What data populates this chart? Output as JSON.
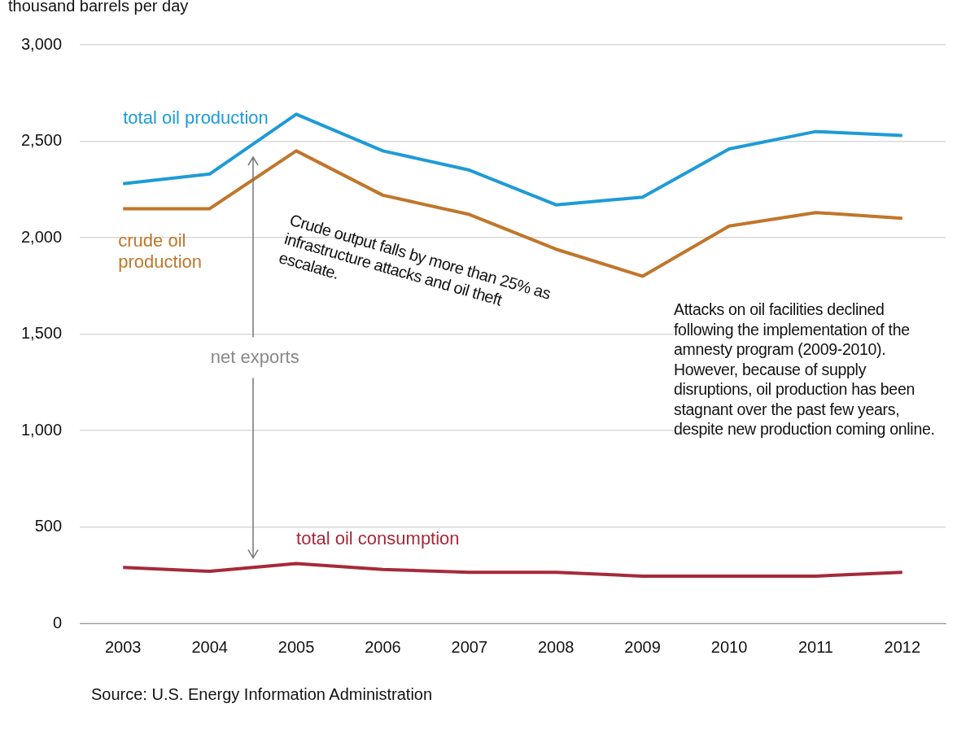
{
  "chart_data": {
    "type": "line",
    "ylabel": "thousand barrels per day",
    "categories": [
      "2003",
      "2004",
      "2005",
      "2006",
      "2007",
      "2008",
      "2009",
      "2010",
      "2011",
      "2012"
    ],
    "series": [
      {
        "name": "total oil production",
        "color": "#1e9bd7",
        "values": [
          2280,
          2330,
          2640,
          2450,
          2350,
          2170,
          2210,
          2460,
          2550,
          2530
        ]
      },
      {
        "name": "crude oil production",
        "color": "#c0762a",
        "values": [
          2150,
          2150,
          2450,
          2220,
          2120,
          1940,
          1800,
          2060,
          2130,
          2100
        ]
      },
      {
        "name": "total oil consumption",
        "color": "#a52a3a",
        "values": [
          290,
          270,
          310,
          280,
          265,
          265,
          245,
          245,
          245,
          265
        ]
      }
    ],
    "ylim": [
      0,
      3000
    ],
    "yticks": [
      {
        "value": 0,
        "label": "0"
      },
      {
        "value": 500,
        "label": "500"
      },
      {
        "value": 1000,
        "label": "1,000"
      },
      {
        "value": 1500,
        "label": "1,500"
      },
      {
        "value": 2000,
        "label": "2,000"
      },
      {
        "value": 2500,
        "label": "2,500"
      },
      {
        "value": 3000,
        "label": "3,000"
      }
    ],
    "grid": "y",
    "legend": false,
    "marker": "none",
    "line_style": "solid",
    "annotations": [
      "net exports",
      "Crude output falls by more than 25% as infrastructure attacks and oil theft escalate.",
      "Attacks on oil facilities declined following the implementation of the amnesty program (2009-2010). However, because of supply disruptions, oil production has been stagnant over the past few years, despite new production coming online.",
      "Source: U.S. Energy Information Administration"
    ]
  }
}
